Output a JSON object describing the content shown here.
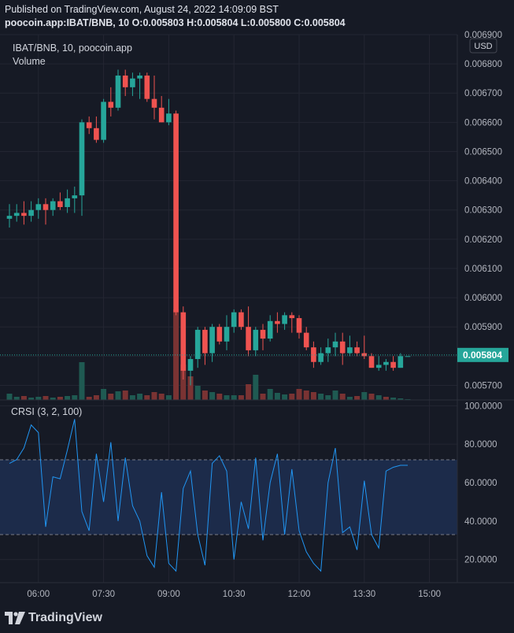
{
  "header": {
    "published": "Published on TradingView.com, August 24, 2022 14:09:09 BST",
    "ohlc": "poocoin.app:IBAT/BNB, 10 O:0.005803 H:0.005804 L:0.005800 C:0.005804"
  },
  "legend": {
    "symbol": "IBAT/BNB, 10, poocoin.app",
    "volume": "Volume",
    "crsi": "CRSI (3, 2, 100)"
  },
  "currency_badge": "USD",
  "last_price_label": "0.005804",
  "price_axis_ticks": [
    "0.006900",
    "0.006800",
    "0.006700",
    "0.006600",
    "0.006500",
    "0.006400",
    "0.006300",
    "0.006200",
    "0.006100",
    "0.006000",
    "0.005900",
    "0.005800",
    "0.005700"
  ],
  "crsi_axis_ticks": [
    "100.0000",
    "80.0000",
    "60.0000",
    "40.0000",
    "20.0000"
  ],
  "time_axis_ticks": [
    "06:00",
    "07:30",
    "09:00",
    "10:30",
    "12:00",
    "13:30",
    "15:00"
  ],
  "brand": "TradingView",
  "colors": {
    "up": "#26a69a",
    "down": "#ef5350",
    "background": "#161a25",
    "crsi_line": "#2196f3"
  },
  "chart_data": [
    {
      "type": "candlestick",
      "title": "IBAT/BNB, 10, poocoin.app",
      "x_unit": "time (10-minute bars, 05:20–14:30)",
      "ylim": [
        0.00565,
        0.0069
      ],
      "last_price": 0.005804,
      "candles": [
        {
          "t": "05:20",
          "o": 0.00627,
          "h": 0.00632,
          "l": 0.00624,
          "c": 0.00628
        },
        {
          "t": "05:30",
          "o": 0.00628,
          "h": 0.00632,
          "l": 0.00626,
          "c": 0.00629
        },
        {
          "t": "05:40",
          "o": 0.00629,
          "h": 0.00633,
          "l": 0.00625,
          "c": 0.00628
        },
        {
          "t": "05:50",
          "o": 0.00628,
          "h": 0.00633,
          "l": 0.00626,
          "c": 0.0063
        },
        {
          "t": "06:00",
          "o": 0.0063,
          "h": 0.00634,
          "l": 0.00627,
          "c": 0.00632
        },
        {
          "t": "06:10",
          "o": 0.00632,
          "h": 0.00634,
          "l": 0.00625,
          "c": 0.0063
        },
        {
          "t": "06:20",
          "o": 0.0063,
          "h": 0.00634,
          "l": 0.00628,
          "c": 0.00633
        },
        {
          "t": "06:30",
          "o": 0.00633,
          "h": 0.00636,
          "l": 0.0063,
          "c": 0.00631
        },
        {
          "t": "06:40",
          "o": 0.00631,
          "h": 0.00637,
          "l": 0.00629,
          "c": 0.00634
        },
        {
          "t": "06:50",
          "o": 0.00634,
          "h": 0.00638,
          "l": 0.00629,
          "c": 0.00635
        },
        {
          "t": "07:00",
          "o": 0.00635,
          "h": 0.00661,
          "l": 0.00628,
          "c": 0.0066
        },
        {
          "t": "07:10",
          "o": 0.0066,
          "h": 0.00662,
          "l": 0.00656,
          "c": 0.00658
        },
        {
          "t": "07:20",
          "o": 0.00658,
          "h": 0.00662,
          "l": 0.00653,
          "c": 0.00654
        },
        {
          "t": "07:30",
          "o": 0.00654,
          "h": 0.00668,
          "l": 0.00653,
          "c": 0.00667
        },
        {
          "t": "07:40",
          "o": 0.00667,
          "h": 0.00672,
          "l": 0.00662,
          "c": 0.00665
        },
        {
          "t": "07:50",
          "o": 0.00665,
          "h": 0.00678,
          "l": 0.00664,
          "c": 0.00676
        },
        {
          "t": "08:00",
          "o": 0.00676,
          "h": 0.00678,
          "l": 0.00669,
          "c": 0.00672
        },
        {
          "t": "08:10",
          "o": 0.00672,
          "h": 0.00677,
          "l": 0.00669,
          "c": 0.00675
        },
        {
          "t": "08:20",
          "o": 0.00675,
          "h": 0.00677,
          "l": 0.00668,
          "c": 0.00676
        },
        {
          "t": "08:30",
          "o": 0.00676,
          "h": 0.00677,
          "l": 0.00667,
          "c": 0.00668
        },
        {
          "t": "08:40",
          "o": 0.00668,
          "h": 0.00676,
          "l": 0.00661,
          "c": 0.00665
        },
        {
          "t": "08:50",
          "o": 0.00665,
          "h": 0.00669,
          "l": 0.0066,
          "c": 0.0066
        },
        {
          "t": "09:00",
          "o": 0.0066,
          "h": 0.00668,
          "l": 0.00659,
          "c": 0.00663
        },
        {
          "t": "09:10",
          "o": 0.00663,
          "h": 0.00664,
          "l": 0.00594,
          "c": 0.00595
        },
        {
          "t": "09:20",
          "o": 0.00595,
          "h": 0.00597,
          "l": 0.00572,
          "c": 0.00575
        },
        {
          "t": "09:30",
          "o": 0.00575,
          "h": 0.0058,
          "l": 0.0057,
          "c": 0.00579
        },
        {
          "t": "09:40",
          "o": 0.00579,
          "h": 0.0059,
          "l": 0.00576,
          "c": 0.00589
        },
        {
          "t": "09:50",
          "o": 0.00589,
          "h": 0.0059,
          "l": 0.00577,
          "c": 0.00581
        },
        {
          "t": "10:00",
          "o": 0.00581,
          "h": 0.00591,
          "l": 0.00578,
          "c": 0.0059
        },
        {
          "t": "10:10",
          "o": 0.0059,
          "h": 0.00591,
          "l": 0.00584,
          "c": 0.00585
        },
        {
          "t": "10:20",
          "o": 0.00585,
          "h": 0.00594,
          "l": 0.00582,
          "c": 0.0059
        },
        {
          "t": "10:30",
          "o": 0.0059,
          "h": 0.00596,
          "l": 0.00588,
          "c": 0.00595
        },
        {
          "t": "10:40",
          "o": 0.00595,
          "h": 0.00596,
          "l": 0.00589,
          "c": 0.0059
        },
        {
          "t": "10:50",
          "o": 0.0059,
          "h": 0.00597,
          "l": 0.0058,
          "c": 0.00582
        },
        {
          "t": "11:00",
          "o": 0.00582,
          "h": 0.0059,
          "l": 0.0058,
          "c": 0.00589
        },
        {
          "t": "11:10",
          "o": 0.00589,
          "h": 0.00591,
          "l": 0.00582,
          "c": 0.00586
        },
        {
          "t": "11:20",
          "o": 0.00586,
          "h": 0.00594,
          "l": 0.00585,
          "c": 0.00592
        },
        {
          "t": "11:30",
          "o": 0.00592,
          "h": 0.00595,
          "l": 0.00588,
          "c": 0.00591
        },
        {
          "t": "11:40",
          "o": 0.00591,
          "h": 0.00595,
          "l": 0.00589,
          "c": 0.00594
        },
        {
          "t": "11:50",
          "o": 0.00594,
          "h": 0.00595,
          "l": 0.00588,
          "c": 0.00593
        },
        {
          "t": "12:00",
          "o": 0.00593,
          "h": 0.00594,
          "l": 0.00586,
          "c": 0.00588
        },
        {
          "t": "12:10",
          "o": 0.00588,
          "h": 0.0059,
          "l": 0.00582,
          "c": 0.00583
        },
        {
          "t": "12:20",
          "o": 0.00583,
          "h": 0.00585,
          "l": 0.00576,
          "c": 0.00578
        },
        {
          "t": "12:30",
          "o": 0.00578,
          "h": 0.00583,
          "l": 0.00577,
          "c": 0.00581
        },
        {
          "t": "12:40",
          "o": 0.00581,
          "h": 0.00586,
          "l": 0.00578,
          "c": 0.00583
        },
        {
          "t": "12:50",
          "o": 0.00583,
          "h": 0.00588,
          "l": 0.0058,
          "c": 0.00585
        },
        {
          "t": "13:00",
          "o": 0.00585,
          "h": 0.00588,
          "l": 0.00577,
          "c": 0.00581
        },
        {
          "t": "13:10",
          "o": 0.00581,
          "h": 0.00587,
          "l": 0.0058,
          "c": 0.00583
        },
        {
          "t": "13:20",
          "o": 0.00583,
          "h": 0.00585,
          "l": 0.0058,
          "c": 0.00581
        },
        {
          "t": "13:30",
          "o": 0.00581,
          "h": 0.00587,
          "l": 0.00579,
          "c": 0.0058
        },
        {
          "t": "13:40",
          "o": 0.0058,
          "h": 0.00581,
          "l": 0.00576,
          "c": 0.00576
        },
        {
          "t": "13:50",
          "o": 0.00576,
          "h": 0.0058,
          "l": 0.00575,
          "c": 0.00577
        },
        {
          "t": "14:00",
          "o": 0.00577,
          "h": 0.00579,
          "l": 0.00575,
          "c": 0.00578
        },
        {
          "t": "14:10",
          "o": 0.00578,
          "h": 0.0058,
          "l": 0.00575,
          "c": 0.00576
        },
        {
          "t": "14:20",
          "o": 0.00576,
          "h": 0.00581,
          "l": 0.00576,
          "c": 0.0058
        },
        {
          "t": "14:30",
          "o": 0.0058,
          "h": 0.0058,
          "l": 0.0058,
          "c": 0.0058
        }
      ],
      "volume": [
        {
          "t": "05:20",
          "v": 8,
          "up": true
        },
        {
          "t": "05:30",
          "v": 4,
          "up": true
        },
        {
          "t": "05:40",
          "v": 5,
          "up": false
        },
        {
          "t": "05:50",
          "v": 3,
          "up": true
        },
        {
          "t": "06:00",
          "v": 4,
          "up": true
        },
        {
          "t": "06:10",
          "v": 5,
          "up": false
        },
        {
          "t": "06:20",
          "v": 3,
          "up": true
        },
        {
          "t": "06:30",
          "v": 4,
          "up": false
        },
        {
          "t": "06:40",
          "v": 5,
          "up": true
        },
        {
          "t": "06:50",
          "v": 6,
          "up": true
        },
        {
          "t": "07:00",
          "v": 48,
          "up": true
        },
        {
          "t": "07:10",
          "v": 4,
          "up": false
        },
        {
          "t": "07:20",
          "v": 6,
          "up": false
        },
        {
          "t": "07:30",
          "v": 14,
          "up": true
        },
        {
          "t": "07:40",
          "v": 8,
          "up": false
        },
        {
          "t": "07:50",
          "v": 11,
          "up": true
        },
        {
          "t": "08:00",
          "v": 12,
          "up": false
        },
        {
          "t": "08:10",
          "v": 6,
          "up": true
        },
        {
          "t": "08:20",
          "v": 8,
          "up": true
        },
        {
          "t": "08:30",
          "v": 6,
          "up": false
        },
        {
          "t": "08:40",
          "v": 10,
          "up": false
        },
        {
          "t": "08:50",
          "v": 8,
          "up": false
        },
        {
          "t": "09:00",
          "v": 6,
          "up": true
        },
        {
          "t": "09:10",
          "v": 115,
          "up": false
        },
        {
          "t": "09:20",
          "v": 45,
          "up": false
        },
        {
          "t": "09:30",
          "v": 30,
          "up": false
        },
        {
          "t": "09:40",
          "v": 18,
          "up": true
        },
        {
          "t": "09:50",
          "v": 12,
          "up": false
        },
        {
          "t": "10:00",
          "v": 10,
          "up": true
        },
        {
          "t": "10:10",
          "v": 8,
          "up": false
        },
        {
          "t": "10:20",
          "v": 6,
          "up": true
        },
        {
          "t": "10:30",
          "v": 6,
          "up": true
        },
        {
          "t": "10:40",
          "v": 6,
          "up": false
        },
        {
          "t": "10:50",
          "v": 20,
          "up": false
        },
        {
          "t": "11:00",
          "v": 32,
          "up": true
        },
        {
          "t": "11:10",
          "v": 8,
          "up": false
        },
        {
          "t": "11:20",
          "v": 14,
          "up": true
        },
        {
          "t": "11:30",
          "v": 9,
          "up": true
        },
        {
          "t": "11:40",
          "v": 7,
          "up": true
        },
        {
          "t": "11:50",
          "v": 8,
          "up": false
        },
        {
          "t": "12:00",
          "v": 14,
          "up": false
        },
        {
          "t": "12:10",
          "v": 12,
          "up": false
        },
        {
          "t": "12:20",
          "v": 10,
          "up": false
        },
        {
          "t": "12:30",
          "v": 8,
          "up": true
        },
        {
          "t": "12:40",
          "v": 6,
          "up": true
        },
        {
          "t": "12:50",
          "v": 12,
          "up": true
        },
        {
          "t": "13:00",
          "v": 8,
          "up": false
        },
        {
          "t": "13:10",
          "v": 4,
          "up": true
        },
        {
          "t": "13:20",
          "v": 5,
          "up": false
        },
        {
          "t": "13:30",
          "v": 10,
          "up": true
        },
        {
          "t": "13:40",
          "v": 8,
          "up": false
        },
        {
          "t": "13:50",
          "v": 6,
          "up": true
        },
        {
          "t": "14:00",
          "v": 4,
          "up": false
        },
        {
          "t": "14:10",
          "v": 3,
          "up": true
        },
        {
          "t": "14:20",
          "v": 2,
          "up": true
        },
        {
          "t": "14:30",
          "v": 1,
          "up": true
        }
      ]
    },
    {
      "type": "line",
      "title": "CRSI (3, 2, 100)",
      "ylim": [
        8,
        103
      ],
      "band": [
        30,
        70
      ],
      "x": [
        "05:20",
        "05:30",
        "05:40",
        "05:50",
        "06:00",
        "06:10",
        "06:20",
        "06:30",
        "06:40",
        "06:50",
        "07:00",
        "07:10",
        "07:20",
        "07:30",
        "07:40",
        "07:50",
        "08:00",
        "08:10",
        "08:20",
        "08:30",
        "08:40",
        "08:50",
        "09:00",
        "09:10",
        "09:20",
        "09:30",
        "09:40",
        "09:50",
        "10:00",
        "10:10",
        "10:20",
        "10:30",
        "10:40",
        "10:50",
        "11:00",
        "11:10",
        "11:20",
        "11:30",
        "11:40",
        "11:50",
        "12:00",
        "12:10",
        "12:20",
        "12:30",
        "12:40",
        "12:50",
        "13:00",
        "13:10",
        "13:20",
        "13:30",
        "13:40",
        "13:50",
        "14:00",
        "14:10",
        "14:20",
        "14:30"
      ],
      "values": [
        70,
        72,
        78,
        90,
        86,
        37,
        63,
        62,
        77,
        93,
        45,
        35,
        75,
        50,
        81,
        40,
        73,
        48,
        40,
        22,
        16,
        55,
        18,
        14,
        57,
        66,
        33,
        17,
        70,
        74,
        66,
        20,
        50,
        36,
        73,
        30,
        60,
        75,
        33,
        67,
        35,
        24,
        18,
        14,
        60,
        78,
        34,
        37,
        25,
        61,
        33,
        26,
        66,
        68,
        69,
        69
      ]
    }
  ]
}
